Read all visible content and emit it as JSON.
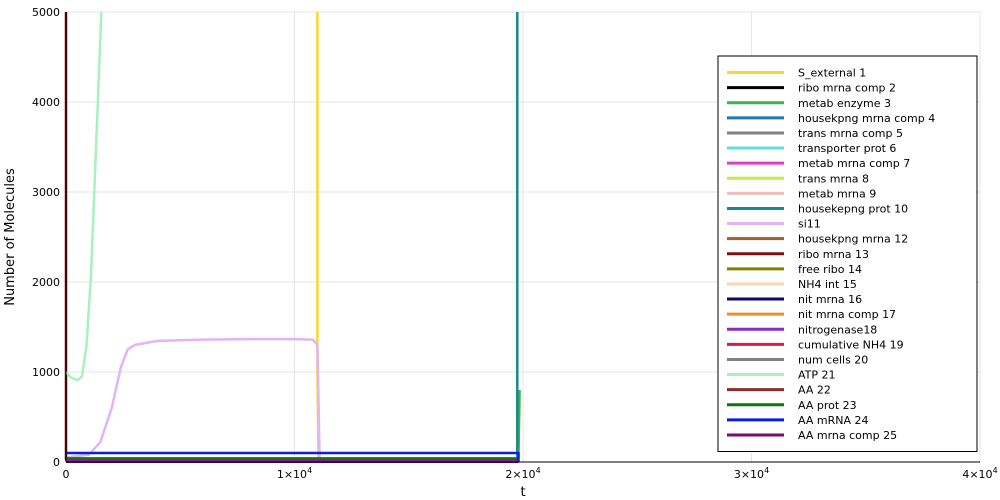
{
  "chart_data": {
    "type": "line",
    "title": "",
    "xlabel": "t",
    "ylabel": "Number of Molecules",
    "xlim": [
      0,
      40000
    ],
    "ylim": [
      0,
      5000
    ],
    "grid": true,
    "legend_position": "top-right",
    "x_ticks": [
      {
        "value": 0,
        "base": "0",
        "exp": ""
      },
      {
        "value": 10000,
        "base": "1×10",
        "exp": "4"
      },
      {
        "value": 20000,
        "base": "2×10",
        "exp": "4"
      },
      {
        "value": 30000,
        "base": "3×10",
        "exp": "4"
      },
      {
        "value": 40000,
        "base": "4×10",
        "exp": "4"
      }
    ],
    "y_ticks": [
      {
        "value": 0,
        "label": "0"
      },
      {
        "value": 1000,
        "label": "1000"
      },
      {
        "value": 2000,
        "label": "2000"
      },
      {
        "value": 3000,
        "label": "3000"
      },
      {
        "value": 4000,
        "label": "4000"
      },
      {
        "value": 5000,
        "label": "5000"
      }
    ],
    "series": [
      {
        "name": "S_external 1",
        "color": "#f5d92e",
        "points": [
          [
            11000,
            5000
          ],
          [
            11000,
            1050
          ],
          [
            11050,
            5
          ]
        ]
      },
      {
        "name": "ribo mrna comp 2",
        "color": "#000000",
        "points": [
          [
            0,
            5
          ],
          [
            19800,
            5
          ]
        ]
      },
      {
        "name": "metab enzyme 3",
        "color": "#3cb44b",
        "points": [
          [
            19800,
            5
          ],
          [
            19850,
            800
          ]
        ]
      },
      {
        "name": "housekpng mrna comp 4",
        "color": "#1f77b4",
        "points": [
          [
            0,
            10
          ],
          [
            19800,
            10
          ]
        ]
      },
      {
        "name": "trans mrna comp 5",
        "color": "#808080",
        "points": [
          [
            0,
            15
          ],
          [
            19800,
            15
          ]
        ]
      },
      {
        "name": "transporter prot 6",
        "color": "#5ce0e0",
        "points": [
          [
            0,
            20
          ],
          [
            19800,
            20
          ]
        ]
      },
      {
        "name": "metab mrna comp 7",
        "color": "#e040c8",
        "points": [
          [
            0,
            8
          ],
          [
            19800,
            8
          ]
        ]
      },
      {
        "name": "trans mrna 8",
        "color": "#c8e84a",
        "points": [
          [
            0,
            12
          ],
          [
            19800,
            12
          ]
        ]
      },
      {
        "name": "metab mrna 9",
        "color": "#f2bcbc",
        "points": [
          [
            0,
            18
          ],
          [
            19800,
            18
          ]
        ]
      },
      {
        "name": "housekepng prot 10",
        "color": "#168a8a",
        "points": [
          [
            19750,
            5000
          ],
          [
            19750,
            30
          ],
          [
            19800,
            5
          ]
        ]
      },
      {
        "name": "si11",
        "color": "#e2b4f5",
        "points": [
          [
            0,
            50
          ],
          [
            1000,
            80
          ],
          [
            1500,
            220
          ],
          [
            2000,
            600
          ],
          [
            2400,
            1050
          ],
          [
            2700,
            1250
          ],
          [
            3000,
            1300
          ],
          [
            4000,
            1345
          ],
          [
            6000,
            1360
          ],
          [
            8000,
            1365
          ],
          [
            10000,
            1365
          ],
          [
            10800,
            1360
          ],
          [
            11000,
            1300
          ],
          [
            11100,
            50
          ],
          [
            11150,
            5
          ]
        ]
      },
      {
        "name": "housekpng mrna 12",
        "color": "#a0602a",
        "points": [
          [
            0,
            25
          ],
          [
            19800,
            25
          ]
        ]
      },
      {
        "name": "ribo mrna 13",
        "color": "#7a1010",
        "points": [
          [
            0,
            5000
          ],
          [
            0,
            30
          ],
          [
            19800,
            30
          ]
        ]
      },
      {
        "name": "free ribo 14",
        "color": "#808000",
        "points": [
          [
            0,
            22
          ],
          [
            19800,
            22
          ]
        ]
      },
      {
        "name": "NH4 int 15",
        "color": "#f9d6b0",
        "points": [
          [
            0,
            28
          ],
          [
            19800,
            28
          ]
        ]
      },
      {
        "name": "nit mrna 16",
        "color": "#0a0a6e",
        "points": [
          [
            0,
            6
          ],
          [
            19800,
            6
          ]
        ]
      },
      {
        "name": "nit mrna comp 17",
        "color": "#f08c28",
        "points": [
          [
            0,
            14
          ],
          [
            19800,
            14
          ]
        ]
      },
      {
        "name": "nitrogenase18",
        "color": "#8c28c8",
        "points": [
          [
            0,
            16
          ],
          [
            19800,
            16
          ]
        ]
      },
      {
        "name": "cumulative NH4 19",
        "color": "#d81e48",
        "points": [
          [
            0,
            3
          ],
          [
            19800,
            3
          ]
        ]
      },
      {
        "name": "num cells 20",
        "color": "#828282",
        "points": [
          [
            0,
            1
          ],
          [
            19800,
            1
          ]
        ]
      },
      {
        "name": "ATP 21",
        "color": "#a8f0c0",
        "points": [
          [
            0,
            1000
          ],
          [
            200,
            940
          ],
          [
            500,
            910
          ],
          [
            700,
            950
          ],
          [
            900,
            1300
          ],
          [
            1100,
            2100
          ],
          [
            1300,
            3400
          ],
          [
            1500,
            4700
          ],
          [
            1550,
            5000
          ]
        ]
      },
      {
        "name": "AA 22",
        "color": "#8a2c2c",
        "points": [
          [
            0,
            35
          ],
          [
            19800,
            35
          ]
        ]
      },
      {
        "name": "AA prot 23",
        "color": "#0a780a",
        "points": [
          [
            0,
            40
          ],
          [
            19800,
            40
          ]
        ]
      },
      {
        "name": "AA mRNA 24",
        "color": "#0a1edc",
        "points": [
          [
            0,
            100
          ],
          [
            19800,
            100
          ],
          [
            19800,
            5
          ]
        ]
      },
      {
        "name": "AA mrna comp 25",
        "color": "#7a0a7a",
        "points": [
          [
            0,
            2
          ],
          [
            19800,
            2
          ]
        ]
      }
    ]
  }
}
